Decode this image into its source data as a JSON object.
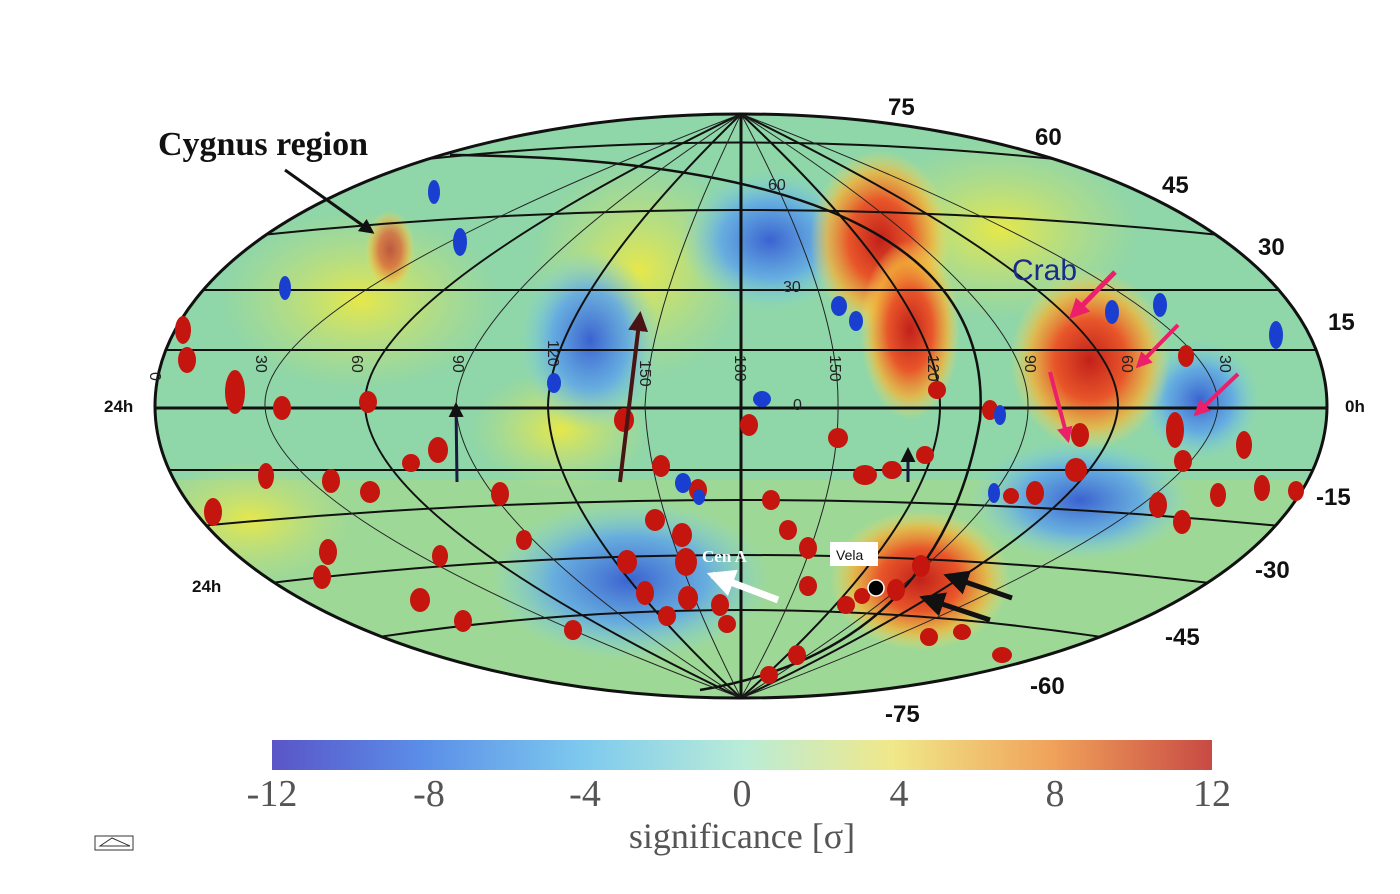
{
  "map": {
    "projection": "hammer-aitoff",
    "dec_labels": [
      "75",
      "60",
      "45",
      "30",
      "15",
      "0h",
      "-15",
      "-30",
      "-45",
      "-60",
      "-75"
    ],
    "ra_left_label": "24h",
    "ra_left_label_lower": "24h",
    "inner_dec_labels": [
      "60",
      "30",
      "0"
    ],
    "galactic_lon_labels": [
      "0",
      "30",
      "60",
      "90",
      "120",
      "150",
      "180",
      "150",
      "120",
      "90",
      "60",
      "30"
    ],
    "annotations": {
      "cygnus": "Cygnus region",
      "crab": "Crab",
      "cen_a": "Cen A",
      "vela": "Vela"
    },
    "colors": {
      "excess": "#d93a1f",
      "deficit": "#3f6fd8",
      "source_red": "#c4150e",
      "source_blue": "#1a3fd0",
      "crab_arrows": "#ec1f6a",
      "dark_arrows": "#111111",
      "outline": "#111111"
    }
  },
  "colorbar": {
    "ticks": [
      "-12",
      "-8",
      "-4",
      "0",
      "4",
      "8",
      "12"
    ],
    "label": "significance [σ]",
    "range": [
      -12,
      12
    ]
  }
}
